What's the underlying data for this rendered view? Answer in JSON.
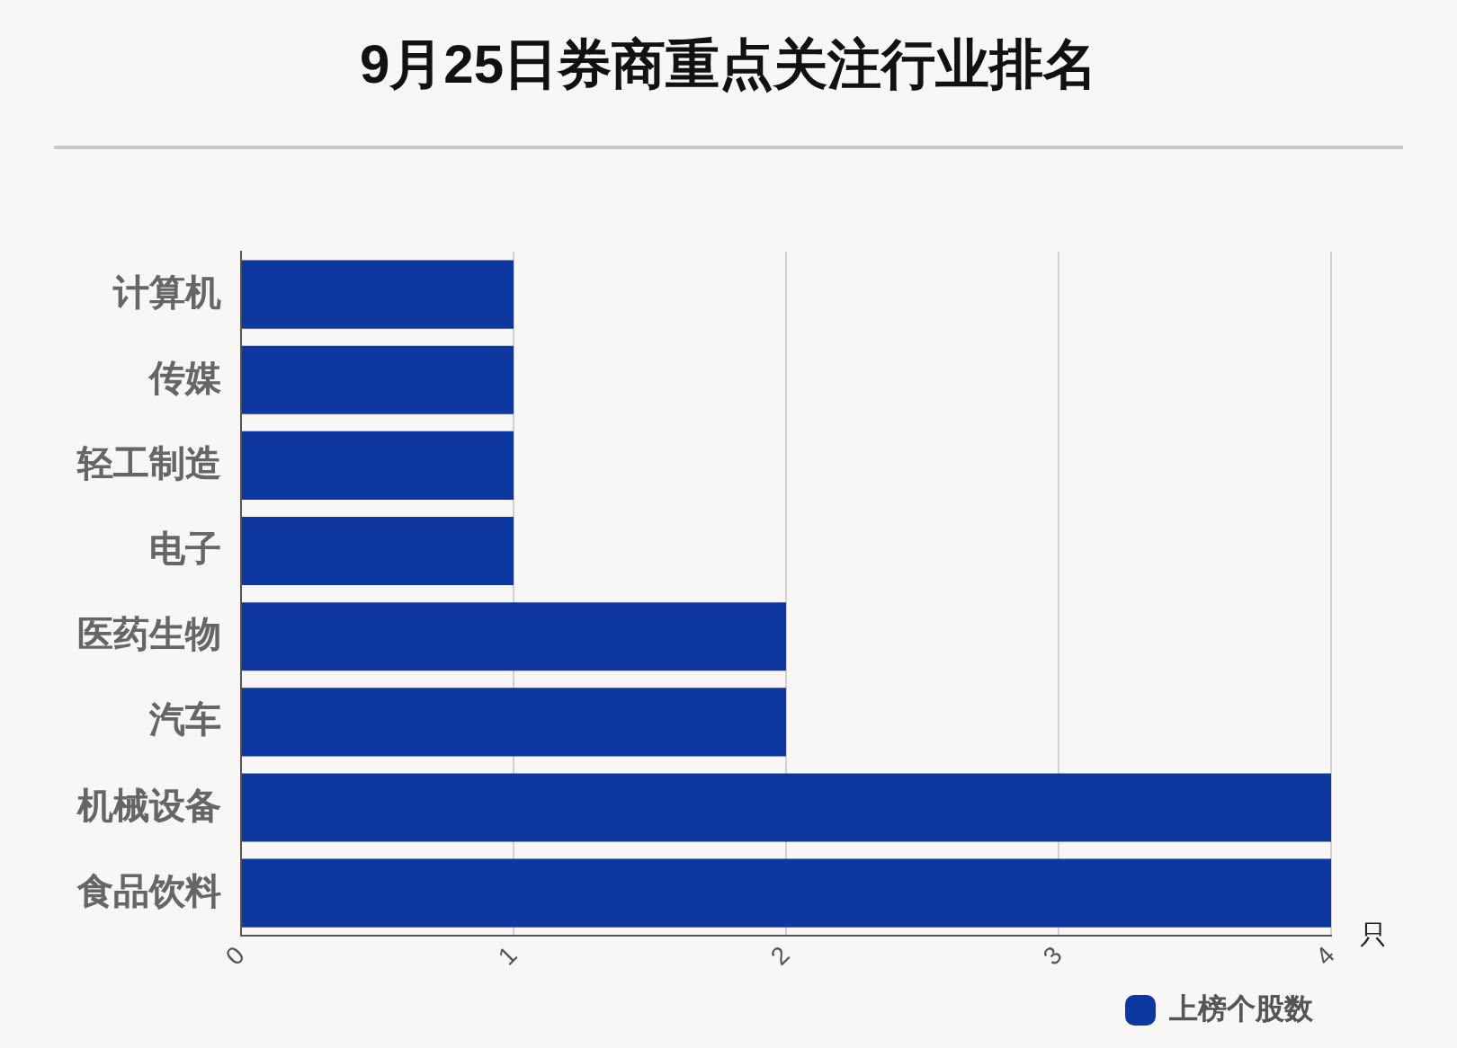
{
  "chart_data": {
    "type": "bar",
    "orientation": "horizontal",
    "title": "9月25日券商重点关注行业排名",
    "xlabel": "只",
    "categories": [
      "计算机",
      "传媒",
      "轻工制造",
      "电子",
      "医药生物",
      "汽车",
      "机械设备",
      "食品饮料"
    ],
    "series": [
      {
        "name": "上榜个股数",
        "color": "#0f37a0",
        "values": [
          1,
          1,
          1,
          1,
          2,
          2,
          4,
          4
        ]
      }
    ],
    "xlim": [
      0,
      4
    ],
    "xticks": [
      0,
      1,
      2,
      3,
      4
    ],
    "grid": "x",
    "legend": "bottom right"
  }
}
